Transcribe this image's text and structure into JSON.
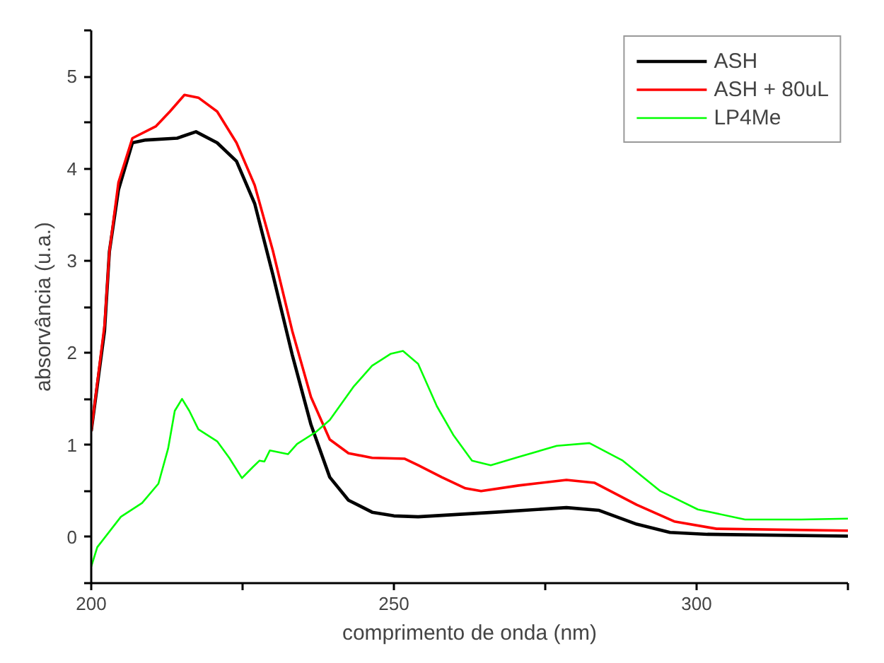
{
  "chart_data": {
    "type": "line",
    "xlabel": "comprimento de onda (nm)",
    "ylabel": "absorvância (u.a.)",
    "xlim": [
      200,
      325
    ],
    "ylim": [
      -0.5,
      5.5
    ],
    "xticks": [
      200,
      {
        "value": 225,
        "label": null
      },
      250,
      {
        "value": 275,
        "label": null
      },
      300,
      {
        "value": 325,
        "label": null
      }
    ],
    "yticks": [
      {
        "value": -0.5,
        "label": null
      },
      0,
      {
        "value": 0.5,
        "label": null
      },
      1,
      {
        "value": 1.5,
        "label": null
      },
      2,
      {
        "value": 2.5,
        "label": null
      },
      3,
      {
        "value": 3.5,
        "label": null
      },
      4,
      {
        "value": 4.5,
        "label": null
      },
      5,
      {
        "value": 5.5,
        "label": null
      }
    ],
    "grid": false,
    "legend": "top right",
    "marker": "none",
    "line_style": "solid",
    "series": [
      {
        "name": "ASH",
        "color": "#000000",
        "x": [
          200,
          202.2,
          203,
          204.5,
          206.8,
          209,
          214.2,
          217.3,
          220.8,
          224,
          227,
          230,
          233.2,
          236.3,
          239.4,
          242.5,
          246.4,
          250,
          254,
          266.8,
          278.5,
          283.9,
          290.1,
          295.6,
          301.8,
          325
        ],
        "values": [
          1.15,
          2.24,
          3.1,
          3.77,
          4.28,
          4.31,
          4.33,
          4.4,
          4.28,
          4.08,
          3.62,
          2.85,
          1.98,
          1.22,
          0.65,
          0.4,
          0.27,
          0.23,
          0.22,
          0.27,
          0.32,
          0.29,
          0.14,
          0.05,
          0.03,
          0.01
        ]
      },
      {
        "name": "ASH + 80uL",
        "color": "#ff0000",
        "x": [
          200,
          202.2,
          203,
          204.5,
          206.8,
          210.7,
          213,
          215.4,
          217.7,
          220.8,
          224,
          227,
          230,
          233.2,
          236.3,
          239.4,
          242.5,
          246.4,
          251.8,
          254,
          257.9,
          261.8,
          264.4,
          270.6,
          278.5,
          283.1,
          290.1,
          296.3,
          303.3,
          325
        ],
        "values": [
          1.15,
          2.3,
          3.1,
          3.85,
          4.33,
          4.46,
          4.62,
          4.8,
          4.77,
          4.62,
          4.28,
          3.82,
          3.11,
          2.24,
          1.52,
          1.06,
          0.91,
          0.86,
          0.85,
          0.78,
          0.65,
          0.53,
          0.5,
          0.56,
          0.62,
          0.59,
          0.35,
          0.17,
          0.09,
          0.07
        ]
      },
      {
        "name": "LP4Me",
        "color": "#00ff00",
        "x": [
          200,
          201,
          204.9,
          208.4,
          211.1,
          212.7,
          213.8,
          215,
          216.2,
          217.7,
          220.8,
          222.8,
          224.9,
          226.7,
          227.8,
          228.6,
          229.5,
          232.5,
          234,
          237.1,
          239.4,
          243.3,
          246.4,
          249.5,
          251.5,
          254,
          257.1,
          259.8,
          262.9,
          266,
          270.6,
          276.9,
          282.3,
          287.8,
          294,
          300.2,
          308,
          317.3,
          325
        ],
        "values": [
          -0.32,
          -0.11,
          0.22,
          0.37,
          0.58,
          0.96,
          1.37,
          1.5,
          1.37,
          1.17,
          1.04,
          0.86,
          0.64,
          0.76,
          0.83,
          0.82,
          0.94,
          0.9,
          1.01,
          1.14,
          1.27,
          1.63,
          1.86,
          1.99,
          2.02,
          1.88,
          1.42,
          1.11,
          0.83,
          0.78,
          0.87,
          0.99,
          1.02,
          0.83,
          0.5,
          0.3,
          0.19,
          0.19,
          0.2
        ]
      }
    ]
  }
}
